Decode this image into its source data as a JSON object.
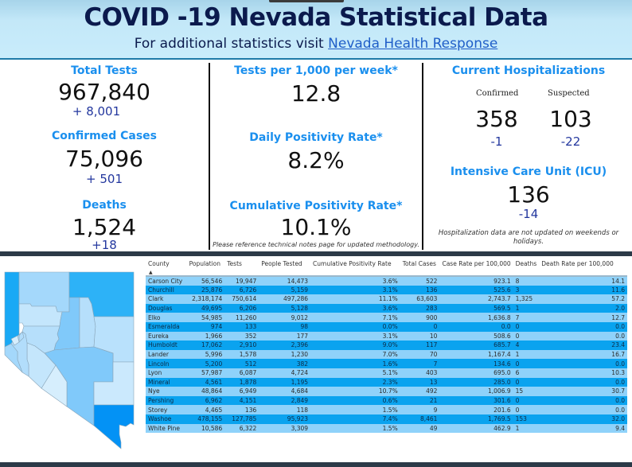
{
  "header": {
    "title": "COVID -19 Nevada Statistical Data",
    "subtitle_prefix": "For additional statistics visit ",
    "subtitle_link": "Nevada Health Response"
  },
  "stats": {
    "total_tests": {
      "label": "Total Tests",
      "value": "967,840",
      "delta": "+ 8,001"
    },
    "confirmed_cases": {
      "label": "Confirmed Cases",
      "value": "75,096",
      "delta": "+ 501"
    },
    "deaths": {
      "label": "Deaths",
      "value": "1,524",
      "delta": "+18"
    },
    "tests_per_1000": {
      "label": "Tests per 1,000 per week*",
      "value": "12.8"
    },
    "daily_positivity": {
      "label": "Daily Positivity Rate*",
      "value": "8.2%"
    },
    "cumulative_positivity": {
      "label": "Cumulative Positivity Rate*",
      "value": "10.1%"
    },
    "methodology_note": "Please reference technical notes page for updated methodology.",
    "hospitalizations": {
      "label": "Current Hospitalizations",
      "confirmed_label": "Confirmed",
      "suspected_label": "Suspected",
      "confirmed_value": "358",
      "confirmed_delta": "-1",
      "suspected_value": "103",
      "suspected_delta": "-22"
    },
    "icu": {
      "label": "Intensive Care Unit (ICU)",
      "value": "136",
      "delta": "-14"
    },
    "hospital_note": "Hospitalization data are not updated on weekends or holidays."
  },
  "colors": {
    "label_blue": "#1a8fee",
    "delta_blue": "#23379e",
    "title_navy": "#0b1a4d",
    "row_light": "#8fd2fa",
    "row_dark": "#0aa3ef"
  },
  "map": {
    "icon": "nevada-county-map",
    "counties": [
      {
        "name": "Washoe",
        "shade": "#19a9f5"
      },
      {
        "name": "Humboldt",
        "shade": "#a4d8fb"
      },
      {
        "name": "Elko",
        "shade": "#2db2f7"
      },
      {
        "name": "Pershing",
        "shade": "#c4e6fc"
      },
      {
        "name": "Lander",
        "shade": "#80c9fa"
      },
      {
        "name": "Eureka",
        "shade": "#b6dffb"
      },
      {
        "name": "White Pine",
        "shade": "#b9e1fc"
      },
      {
        "name": "Churchill",
        "shade": "#b6dffb"
      },
      {
        "name": "Nye",
        "shade": "#80c9fa"
      },
      {
        "name": "Lincoln",
        "shade": "#cbe9fd"
      },
      {
        "name": "Mineral",
        "shade": "#c4e6fc"
      },
      {
        "name": "Esmeralda",
        "shade": "#d6eefd"
      },
      {
        "name": "Lyon",
        "shade": "#b2ddfb"
      },
      {
        "name": "Douglas",
        "shade": "#a4d8fb"
      },
      {
        "name": "Carson City",
        "shade": "#d6eefd"
      },
      {
        "name": "Storey",
        "shade": "#b2ddfb"
      },
      {
        "name": "Clark",
        "shade": "#0392f5"
      }
    ]
  },
  "table": {
    "columns": [
      "County",
      "Population",
      "Tests",
      "People Tested",
      "Cumulative Positivity Rate",
      "Total Cases",
      "Case Rate per 100,000",
      "Deaths",
      "Death Rate per 100,000"
    ],
    "sort_indicator": "▲",
    "rows": [
      [
        "Carson City",
        "56,546",
        "19,947",
        "14,473",
        "3.6%",
        "522",
        "923.1",
        "8",
        "14.1"
      ],
      [
        "Churchill",
        "25,876",
        "6,726",
        "5,159",
        "3.1%",
        "136",
        "525.6",
        "3",
        "11.6"
      ],
      [
        "Clark",
        "2,318,174",
        "750,614",
        "497,286",
        "11.1%",
        "63,603",
        "2,743.7",
        "1,325",
        "57.2"
      ],
      [
        "Douglas",
        "49,695",
        "6,206",
        "5,128",
        "3.6%",
        "283",
        "569.5",
        "1",
        "2.0"
      ],
      [
        "Elko",
        "54,985",
        "11,260",
        "9,012",
        "7.1%",
        "900",
        "1,636.8",
        "7",
        "12.7"
      ],
      [
        "Esmeralda",
        "974",
        "133",
        "98",
        "0.0%",
        "0",
        "0.0",
        "0",
        "0.0"
      ],
      [
        "Eureka",
        "1,966",
        "352",
        "177",
        "3.1%",
        "10",
        "508.6",
        "0",
        "0.0"
      ],
      [
        "Humboldt",
        "17,062",
        "2,910",
        "2,396",
        "9.0%",
        "117",
        "685.7",
        "4",
        "23.4"
      ],
      [
        "Lander",
        "5,996",
        "1,578",
        "1,230",
        "7.0%",
        "70",
        "1,167.4",
        "1",
        "16.7"
      ],
      [
        "Lincoln",
        "5,200",
        "512",
        "382",
        "1.6%",
        "7",
        "134.6",
        "0",
        "0.0"
      ],
      [
        "Lyon",
        "57,987",
        "6,087",
        "4,724",
        "5.1%",
        "403",
        "695.0",
        "6",
        "10.3"
      ],
      [
        "Mineral",
        "4,561",
        "1,878",
        "1,195",
        "2.3%",
        "13",
        "285.0",
        "0",
        "0.0"
      ],
      [
        "Nye",
        "48,864",
        "6,949",
        "4,684",
        "10.7%",
        "492",
        "1,006.9",
        "15",
        "30.7"
      ],
      [
        "Pershing",
        "6,962",
        "4,151",
        "2,849",
        "0.6%",
        "21",
        "301.6",
        "0",
        "0.0"
      ],
      [
        "Storey",
        "4,465",
        "136",
        "118",
        "1.5%",
        "9",
        "201.6",
        "0",
        "0.0"
      ],
      [
        "Washoe",
        "478,155",
        "127,785",
        "95,923",
        "7.4%",
        "8,461",
        "1,769.5",
        "153",
        "32.0"
      ],
      [
        "White Pine",
        "10,586",
        "6,322",
        "3,309",
        "1.5%",
        "49",
        "462.9",
        "1",
        "9.4"
      ]
    ]
  }
}
